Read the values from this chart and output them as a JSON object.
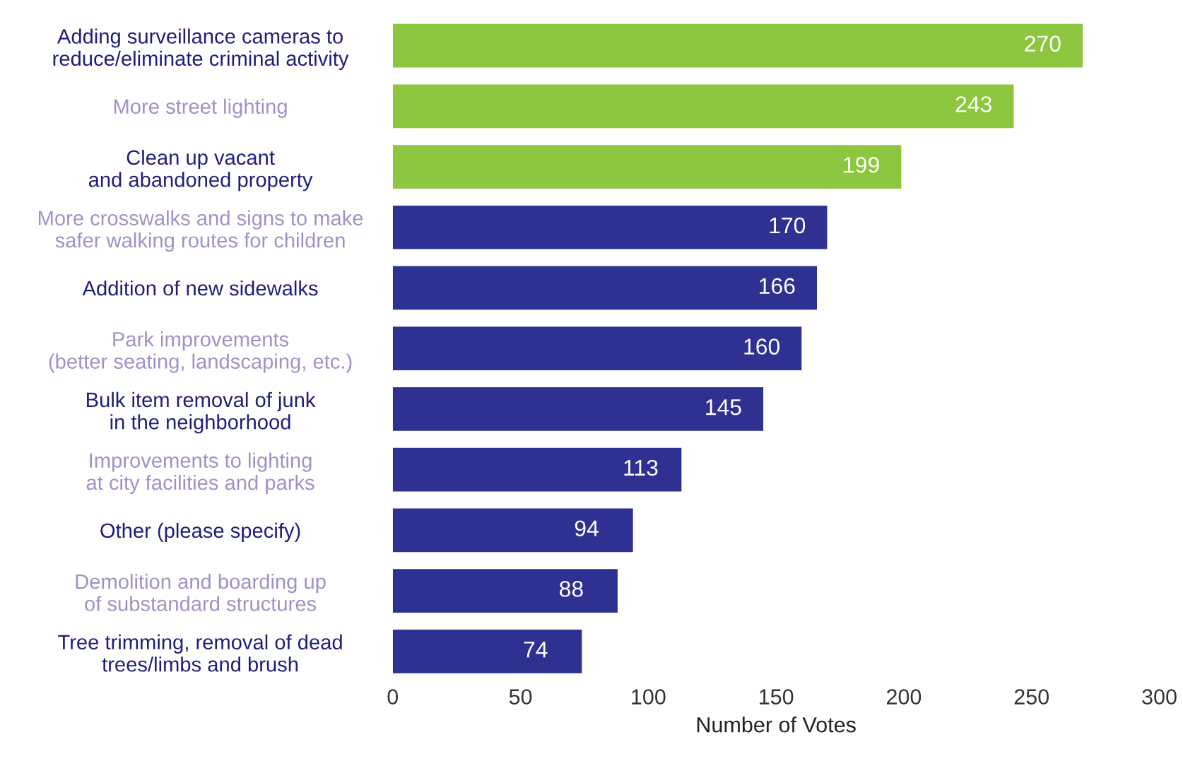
{
  "chart_data": {
    "type": "bar",
    "orientation": "horizontal",
    "xlabel": "Number of Votes",
    "categories": [
      "Adding surveillance cameras to\nreduce/eliminate criminal activity",
      "More street lighting",
      "Clean up vacant\nand abandoned property",
      "More crosswalks and signs to make\nsafer walking routes for children",
      "Addition of new sidewalks",
      "Park improvements\n(better seating, landscaping, etc.)",
      "Bulk item removal of junk\nin the neighborhood",
      "Improvements to lighting\nat city facilities and parks",
      "Other (please specify)",
      "Demolition and boarding up\nof substandard structures",
      "Tree trimming, removal of dead\ntrees/limbs and brush"
    ],
    "values": [
      270,
      243,
      199,
      170,
      166,
      160,
      145,
      113,
      94,
      88,
      74
    ],
    "colors": [
      "#8dc63f",
      "#8dc63f",
      "#8dc63f",
      "#2e3192",
      "#2e3192",
      "#2e3192",
      "#2e3192",
      "#2e3192",
      "#2e3192",
      "#2e3192",
      "#2e3192"
    ],
    "xlim": [
      0,
      300
    ],
    "xticks": [
      0,
      50,
      100,
      150,
      200,
      250,
      300
    ],
    "data_labels": true,
    "grid": false
  }
}
